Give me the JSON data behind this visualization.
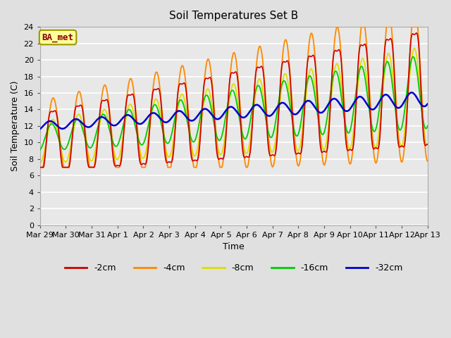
{
  "title": "Soil Temperatures Set B",
  "xlabel": "Time",
  "ylabel": "Soil Temperature (C)",
  "ylim": [
    0,
    24
  ],
  "yticks": [
    0,
    2,
    4,
    6,
    8,
    10,
    12,
    14,
    16,
    18,
    20,
    22,
    24
  ],
  "xtick_labels": [
    "Mar 29",
    "Mar 30",
    "Mar 31",
    "Apr 1",
    "Apr 2",
    "Apr 3",
    "Apr 4",
    "Apr 5",
    "Apr 6",
    "Apr 7",
    "Apr 8",
    "Apr 9",
    "Apr 10",
    "Apr 11",
    "Apr 12",
    "Apr 13"
  ],
  "fig_bg_color": "#e0e0e0",
  "plot_bg_color": "#e8e8e8",
  "grid_color": "#ffffff",
  "annotation_text": "BA_met",
  "annotation_bg": "#ffff99",
  "annotation_border": "#999900",
  "annotation_color": "#880000",
  "line_colors": {
    "2cm": "#cc0000",
    "4cm": "#ff8800",
    "8cm": "#dddd00",
    "16cm": "#00cc00",
    "32cm": "#0000cc"
  },
  "legend_labels": [
    "-2cm",
    "-4cm",
    "-8cm",
    "-16cm",
    "-32cm"
  ],
  "legend_colors": [
    "#cc0000",
    "#ff8800",
    "#dddd00",
    "#00cc00",
    "#0000cc"
  ]
}
